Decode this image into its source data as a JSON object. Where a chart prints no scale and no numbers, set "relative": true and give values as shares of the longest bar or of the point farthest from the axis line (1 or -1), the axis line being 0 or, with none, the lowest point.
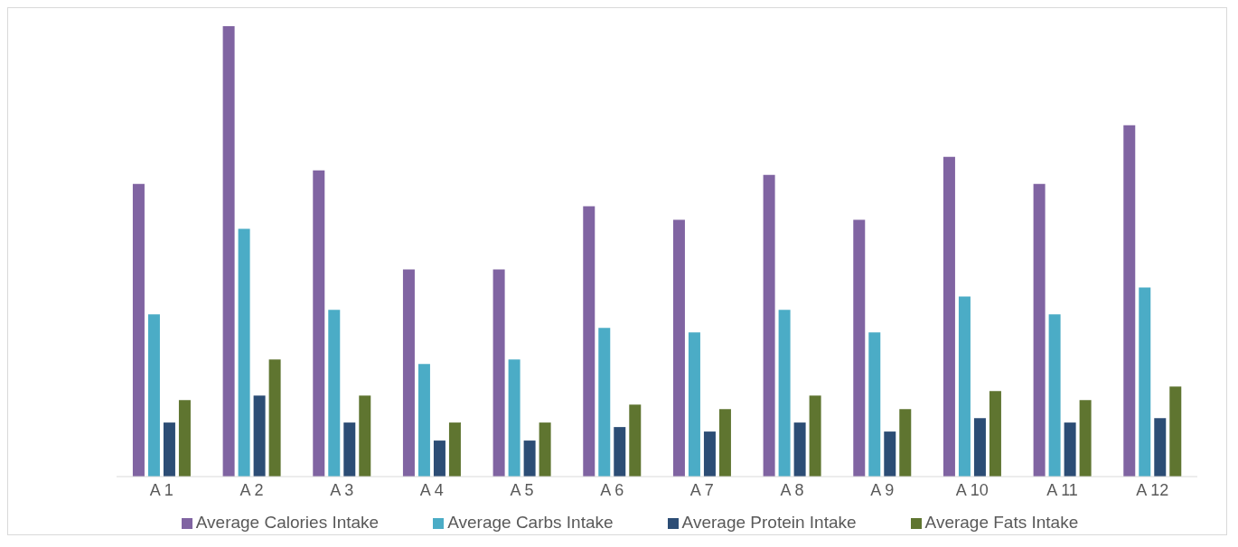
{
  "chart_data": {
    "type": "bar",
    "relative": true,
    "categories": [
      "A 1",
      "A 2",
      "A 3",
      "A 4",
      "A 5",
      "A 6",
      "A 7",
      "A 8",
      "A 9",
      "A 10",
      "A 11",
      "A 12"
    ],
    "series": [
      {
        "name": "Average Calories Intake",
        "color": "#8064a2",
        "values": [
          0.65,
          1,
          0.68,
          0.46,
          0.46,
          0.6,
          0.57,
          0.67,
          0.57,
          0.71,
          0.65,
          0.78
        ]
      },
      {
        "name": "Average Carbs Intake",
        "color": "#4bacc6",
        "values": [
          0.36,
          0.55,
          0.37,
          0.25,
          0.26,
          0.33,
          0.32,
          0.37,
          0.32,
          0.4,
          0.36,
          0.42
        ]
      },
      {
        "name": "Average Protein Intake",
        "color": "#2c4d75",
        "values": [
          0.12,
          0.18,
          0.12,
          0.08,
          0.08,
          0.11,
          0.1,
          0.12,
          0.1,
          0.13,
          0.12,
          0.13
        ]
      },
      {
        "name": "Average Fats Intake",
        "color": "#5f7530",
        "values": [
          0.17,
          0.26,
          0.18,
          0.12,
          0.12,
          0.16,
          0.15,
          0.18,
          0.15,
          0.19,
          0.17,
          0.2
        ]
      }
    ],
    "grid": false,
    "legend": "bottom"
  }
}
